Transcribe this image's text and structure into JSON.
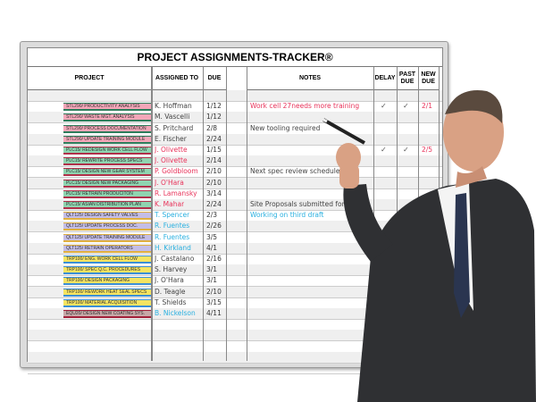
{
  "board": {
    "title": "PROJECT ASSIGNMENTS-TRACKER®",
    "columns": [
      "PROJECT",
      "ASSIGNED TO",
      "DUE",
      "",
      "NOTES",
      "DELAY",
      "PAST DUE",
      "NEW DUE"
    ],
    "rows": [
      {
        "project": "STL290/ PRODUCTIVITY ANALYSIS",
        "pill": "#f4a6b8",
        "edge": "#2e7d5b",
        "dots": [
          "#f0643a",
          "#3b8fd6",
          "#f2d43a"
        ],
        "assigned": "K. Hoffman",
        "acolor": "#444",
        "due": "1/12",
        "note": "Work cell 27needs more training",
        "ncolor": "#e8335a",
        "delay": "✓",
        "past": "✓",
        "new": "2/1"
      },
      {
        "project": "STL290/ WASTE MGT. ANALYSIS",
        "pill": "#f4a6b8",
        "edge": "#2e7d5b",
        "dots": [
          "#a3203a"
        ],
        "assigned": "M. Vascelli",
        "acolor": "#444",
        "due": "1/12",
        "note": "",
        "ncolor": "#444",
        "delay": "",
        "past": "",
        "new": ""
      },
      {
        "project": "STL290/ PROCESS DOCUMENTATION",
        "pill": "#f4a6b8",
        "edge": "#2e7d5b",
        "dots": [
          "#3bb05a"
        ],
        "assigned": "S. Pritchard",
        "acolor": "#444",
        "due": "2/8",
        "note": "New tooling required",
        "ncolor": "#444",
        "delay": "",
        "past": "",
        "new": ""
      },
      {
        "project": "STL290/ UPDATE TRAINING MODULE",
        "pill": "#f4a6b8",
        "edge": "#2e7d5b",
        "dots": [
          "#3b8fd6",
          "#f0643a"
        ],
        "assigned": "E. Fischer",
        "acolor": "#444",
        "due": "2/24",
        "note": "",
        "ncolor": "#444",
        "delay": "",
        "past": "",
        "new": ""
      },
      {
        "project": "PLC15/ REDESIGN WORK CELL FLOW",
        "pill": "#8fd4b0",
        "edge": "#b0304a",
        "dots": [
          "#3bb05a"
        ],
        "assigned": "J. Olivette",
        "acolor": "#e8335a",
        "due": "1/15",
        "note": "",
        "ncolor": "#444",
        "delay": "✓",
        "past": "✓",
        "new": "2/5"
      },
      {
        "project": "PLC15/ REWRITE PROCESS SPECS",
        "pill": "#8fd4b0",
        "edge": "#b0304a",
        "dots": [
          "#a3203a",
          "#3b8fd6",
          "#f4a6b8"
        ],
        "assigned": "J. Olivette",
        "acolor": "#e8335a",
        "due": "2/14",
        "note": "",
        "ncolor": "#444",
        "delay": "",
        "past": "",
        "new": ""
      },
      {
        "project": "PLC15/ DESIGN NEW GEAR SYSTEM",
        "pill": "#8fd4b0",
        "edge": "#b0304a",
        "dots": [
          "#f2d43a",
          "#a3203a"
        ],
        "assigned": "P. Goldbloom",
        "acolor": "#e8335a",
        "due": "2/10",
        "note": "Next spec review scheduled",
        "ncolor": "#444",
        "delay": "",
        "past": "",
        "new": ""
      },
      {
        "project": "PLC15/ DESIGN NEW PACKAGING",
        "pill": "#8fd4b0",
        "edge": "#b0304a",
        "dots": [
          "#3bb05a"
        ],
        "assigned": "J. O'Hara",
        "acolor": "#e8335a",
        "due": "2/10",
        "note": "",
        "ncolor": "#444",
        "delay": "",
        "past": "",
        "new": ""
      },
      {
        "project": "PLC15/ RETRAIN PRODUCITON",
        "pill": "#8fd4b0",
        "edge": "#b0304a",
        "dots": [
          "#f0643a"
        ],
        "assigned": "R. Lamansky",
        "acolor": "#e8335a",
        "due": "3/14",
        "note": "",
        "ncolor": "#444",
        "delay": "",
        "past": "",
        "new": ""
      },
      {
        "project": "PLC15/ ASIAN DISTRIBUTION PLAN",
        "pill": "#8fd4b0",
        "edge": "#b0304a",
        "dots": [
          "#a3203a",
          "#3bb05a",
          "#f2d43a"
        ],
        "assigned": "K. Mahar",
        "acolor": "#e8335a",
        "due": "2/24",
        "note": "Site Proposals submitted for",
        "ncolor": "#444",
        "delay": "",
        "past": "",
        "new": ""
      },
      {
        "project": "QLT125/ DESIGN SAFETY VALVES",
        "pill": "#c4bde6",
        "edge": "#e0b040",
        "dots": [
          "#3b8fd6"
        ],
        "assigned": "T. Spencer",
        "acolor": "#2ab0e0",
        "due": "2/3",
        "note": "Working on third draft",
        "ncolor": "#2ab0e0",
        "delay": "",
        "past": "",
        "new": ""
      },
      {
        "project": "QLT125/ UPDATE PROCESS DOC.",
        "pill": "#c4bde6",
        "edge": "#e0b040",
        "dots": [
          "#f0643a",
          "#3b8fd6"
        ],
        "assigned": "R. Fuentes",
        "acolor": "#2ab0e0",
        "due": "2/26",
        "note": "",
        "ncolor": "#444",
        "delay": "",
        "past": "",
        "new": ""
      },
      {
        "project": "QLT125/ UPDATE TRAINING MODULE",
        "pill": "#c4bde6",
        "edge": "#e0b040",
        "dots": [
          "#5cc8d0",
          "#a3203a"
        ],
        "assigned": "R. Fuentes",
        "acolor": "#2ab0e0",
        "due": "3/5",
        "note": "",
        "ncolor": "#444",
        "delay": "",
        "past": "",
        "new": ""
      },
      {
        "project": "QLT125/ RETRAIN OPERATORS",
        "pill": "#c4bde6",
        "edge": "#e0b040",
        "dots": [
          "#f2d43a"
        ],
        "assigned": "H. Kirkland",
        "acolor": "#2ab0e0",
        "due": "4/1",
        "note": "",
        "ncolor": "#444",
        "delay": "",
        "past": "",
        "new": ""
      },
      {
        "project": "TRP100/ ENG. WORK CELL FLOW",
        "pill": "#f5e461",
        "edge": "#3b8fd6",
        "dots": [
          "#f0643a"
        ],
        "assigned": "J. Castalano",
        "acolor": "#444",
        "due": "2/16",
        "note": "",
        "ncolor": "#444",
        "delay": "",
        "past": "",
        "new": ""
      },
      {
        "project": "TRP100/ SPEC Q.C. PROCEDURES",
        "pill": "#f5e461",
        "edge": "#3b8fd6",
        "dots": [
          "#f0643a"
        ],
        "assigned": "S. Harvey",
        "acolor": "#444",
        "due": "3/1",
        "note": "",
        "ncolor": "#444",
        "delay": "",
        "past": "",
        "new": ""
      },
      {
        "project": "TRP100/ DESIGN PACKAGING",
        "pill": "#f5e461",
        "edge": "#3b8fd6",
        "dots": [
          "#a3203a",
          "#3bb05a"
        ],
        "assigned": "J. O'Hara",
        "acolor": "#444",
        "due": "3/1",
        "note": "",
        "ncolor": "#444",
        "delay": "",
        "past": "",
        "new": ""
      },
      {
        "project": "TRP100/ REWORK HEAT SEAL SPECS",
        "pill": "#f5e461",
        "edge": "#3b8fd6",
        "dots": [
          "#3b8fd6"
        ],
        "assigned": "D. Teagle",
        "acolor": "#444",
        "due": "2/10",
        "note": "",
        "ncolor": "#444",
        "delay": "",
        "past": "",
        "new": ""
      },
      {
        "project": "TRP100/ MATERIAL ACQUISITION",
        "pill": "#f5e461",
        "edge": "#3b8fd6",
        "dots": [
          "#f4a6b8",
          "#f2d43a"
        ],
        "assigned": "T. Shields",
        "acolor": "#444",
        "due": "3/15",
        "note": "",
        "ncolor": "#444",
        "delay": "",
        "past": "",
        "new": ""
      },
      {
        "project": "EQU20/ DESIGN NEW COATING SYS.",
        "pill": "#c8a8a8",
        "edge": "#a3203a",
        "dots": [
          "#f0643a"
        ],
        "assigned": "B. Nickelson",
        "acolor": "#2ab0e0",
        "due": "4/11",
        "note": "",
        "ncolor": "#444",
        "delay": "",
        "past": "",
        "new": ""
      }
    ],
    "empty_rows": 5
  },
  "colors": {
    "check": "#555",
    "new_due": "#e8335a",
    "suit": "#2f3033",
    "tie": "#2a3550",
    "skin": "#d9a184"
  }
}
